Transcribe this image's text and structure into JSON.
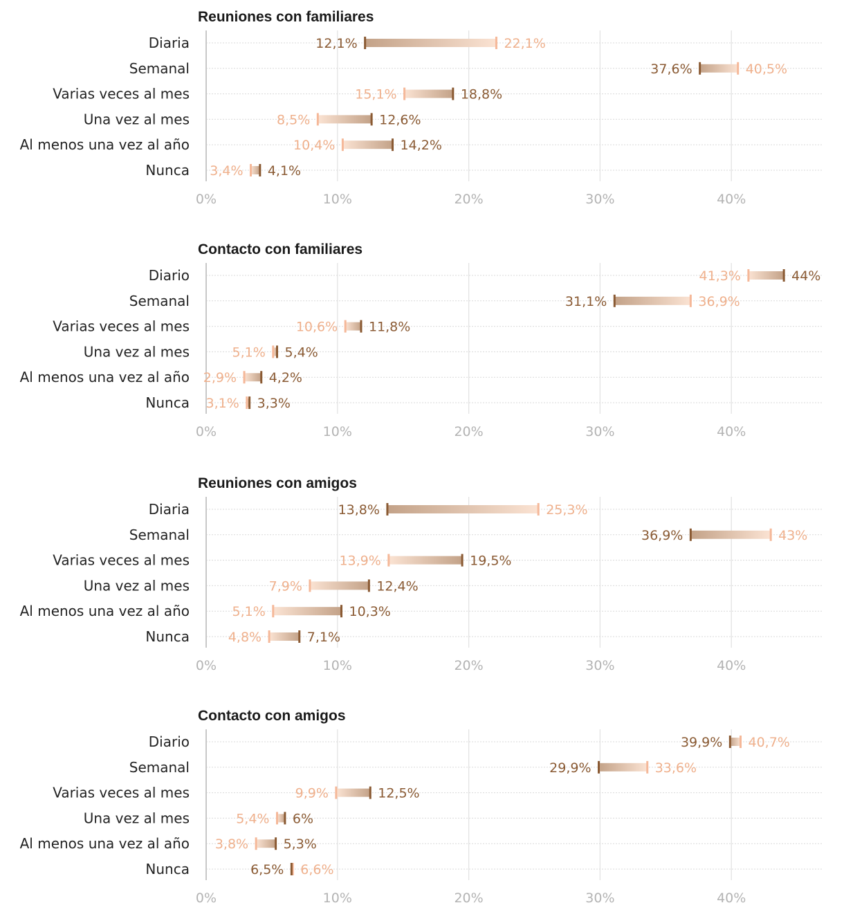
{
  "colors": {
    "dark": "#8a5a33",
    "light": "#f5b899",
    "light_text": "#efb08c",
    "bar_dark": "#c3a288",
    "bar_light": "#fbe3d3"
  },
  "chart_data": [
    {
      "type": "dumbbell",
      "title": "Reuniones con familiares",
      "xlim": [
        0,
        46
      ],
      "ticks": [
        0,
        10,
        20,
        30,
        40
      ],
      "tick_labels": [
        "0%",
        "10%",
        "20%",
        "30%",
        "40%"
      ],
      "rows": [
        {
          "label": "Diaria",
          "dark": 12.1,
          "light": 22.1,
          "dark_label": "12,1%",
          "light_label": "22,1%"
        },
        {
          "label": "Semanal",
          "dark": 37.6,
          "light": 40.5,
          "dark_label": "37,6%",
          "light_label": "40,5%"
        },
        {
          "label": "Varias veces al mes",
          "dark": 18.8,
          "light": 15.1,
          "dark_label": "18,8%",
          "light_label": "15,1%"
        },
        {
          "label": "Una vez al mes",
          "dark": 12.6,
          "light": 8.5,
          "dark_label": "12,6%",
          "light_label": "8,5%"
        },
        {
          "label": "Al menos una vez al año",
          "dark": 14.2,
          "light": 10.4,
          "dark_label": "14,2%",
          "light_label": "10,4%"
        },
        {
          "label": "Nunca",
          "dark": 4.1,
          "light": 3.4,
          "dark_label": "4,1%",
          "light_label": "3,4%"
        }
      ]
    },
    {
      "type": "dumbbell",
      "title": "Contacto con familiares",
      "xlim": [
        0,
        46
      ],
      "ticks": [
        0,
        10,
        20,
        30,
        40
      ],
      "tick_labels": [
        "0%",
        "10%",
        "20%",
        "30%",
        "40%"
      ],
      "rows": [
        {
          "label": "Diario",
          "dark": 44,
          "light": 41.3,
          "dark_label": "44%",
          "light_label": "41,3%"
        },
        {
          "label": "Semanal",
          "dark": 31.1,
          "light": 36.9,
          "dark_label": "31,1%",
          "light_label": "36,9%"
        },
        {
          "label": "Varias veces al mes",
          "dark": 11.8,
          "light": 10.6,
          "dark_label": "11,8%",
          "light_label": "10,6%"
        },
        {
          "label": "Una vez al mes",
          "dark": 5.4,
          "light": 5.1,
          "dark_label": "5,4%",
          "light_label": "5,1%"
        },
        {
          "label": "Al menos una vez al año",
          "dark": 4.2,
          "light": 2.9,
          "dark_label": "4,2%",
          "light_label": "2,9%"
        },
        {
          "label": "Nunca",
          "dark": 3.3,
          "light": 3.1,
          "dark_label": "3,3%",
          "light_label": "3,1%"
        }
      ]
    },
    {
      "type": "dumbbell",
      "title": "Reuniones con amigos",
      "xlim": [
        0,
        46
      ],
      "ticks": [
        0,
        10,
        20,
        30,
        40
      ],
      "tick_labels": [
        "0%",
        "10%",
        "20%",
        "30%",
        "40%"
      ],
      "rows": [
        {
          "label": "Diaria",
          "dark": 13.8,
          "light": 25.3,
          "dark_label": "13,8%",
          "light_label": "25,3%"
        },
        {
          "label": "Semanal",
          "dark": 36.9,
          "light": 43,
          "dark_label": "36,9%",
          "light_label": "43%"
        },
        {
          "label": "Varias veces al mes",
          "dark": 19.5,
          "light": 13.9,
          "dark_label": "19,5%",
          "light_label": "13,9%"
        },
        {
          "label": "Una vez al mes",
          "dark": 12.4,
          "light": 7.9,
          "dark_label": "12,4%",
          "light_label": "7,9%"
        },
        {
          "label": "Al menos una vez al año",
          "dark": 10.3,
          "light": 5.1,
          "dark_label": "10,3%",
          "light_label": "5,1%"
        },
        {
          "label": "Nunca",
          "dark": 7.1,
          "light": 4.8,
          "dark_label": "7,1%",
          "light_label": "4,8%"
        }
      ]
    },
    {
      "type": "dumbbell",
      "title": "Contacto con amigos",
      "xlim": [
        0,
        46
      ],
      "ticks": [
        0,
        10,
        20,
        30,
        40
      ],
      "tick_labels": [
        "0%",
        "10%",
        "20%",
        "30%",
        "40%"
      ],
      "rows": [
        {
          "label": "Diario",
          "dark": 39.9,
          "light": 40.7,
          "dark_label": "39,9%",
          "light_label": "40,7%"
        },
        {
          "label": "Semanal",
          "dark": 29.9,
          "light": 33.6,
          "dark_label": "29,9%",
          "light_label": "33,6%"
        },
        {
          "label": "Varias veces al mes",
          "dark": 12.5,
          "light": 9.9,
          "dark_label": "12,5%",
          "light_label": "9,9%"
        },
        {
          "label": "Una vez al mes",
          "dark": 6,
          "light": 5.4,
          "dark_label": "6%",
          "light_label": "5,4%"
        },
        {
          "label": "Al menos una vez al año",
          "dark": 5.3,
          "light": 3.8,
          "dark_label": "5,3%",
          "light_label": "3,8%"
        },
        {
          "label": "Nunca",
          "dark": 6.5,
          "light": 6.6,
          "dark_label": "6,5%",
          "light_label": "6,6%"
        }
      ]
    }
  ]
}
